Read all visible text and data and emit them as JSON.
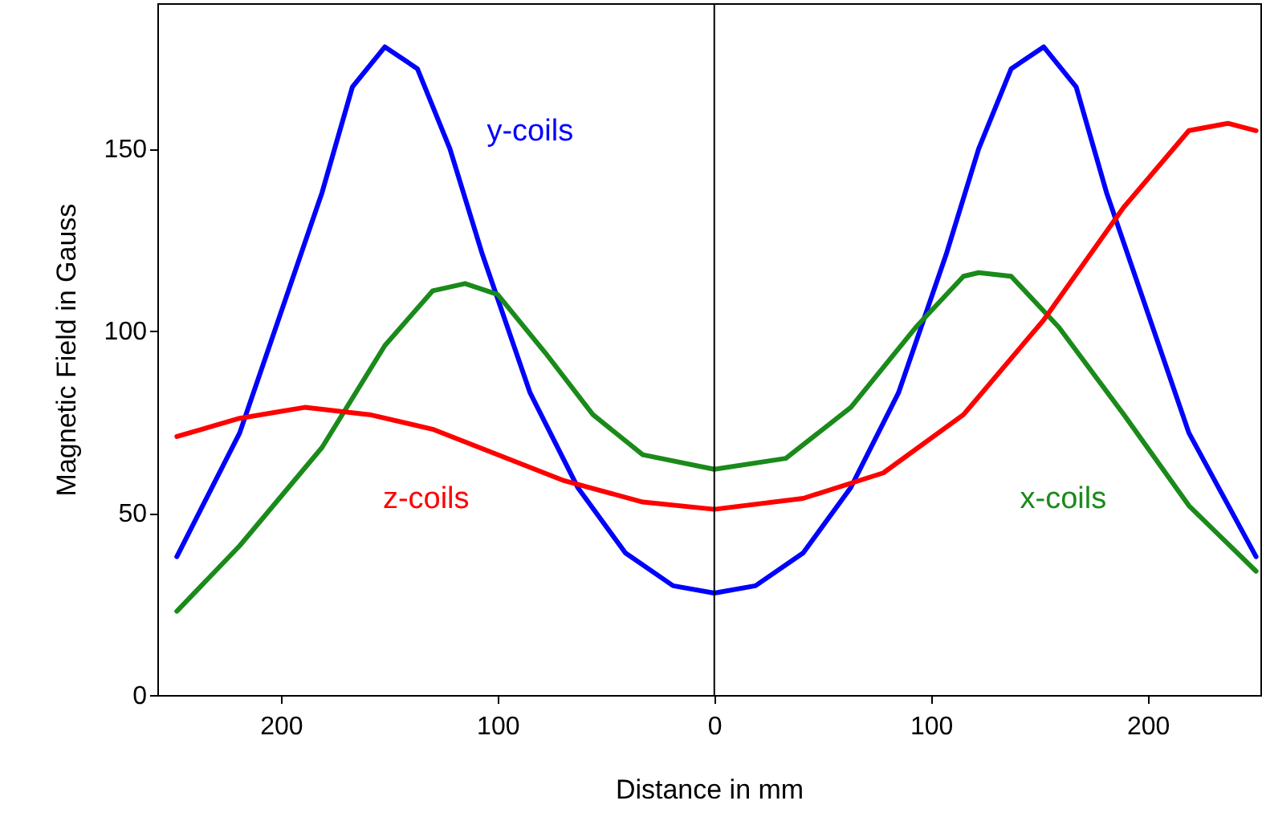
{
  "chart_data": {
    "type": "line",
    "xlabel": "Distance in mm",
    "ylabel": "Magnetic Field in Gauss",
    "xlim": [
      -257,
      252
    ],
    "ylim": [
      0,
      190
    ],
    "xticks": [
      {
        "value": -200,
        "label": "200"
      },
      {
        "value": -100,
        "label": "100"
      },
      0,
      100,
      200
    ],
    "yticks": [
      0,
      50,
      100,
      150
    ],
    "grid": false,
    "legend": false,
    "line_style": "solid",
    "marker": "none",
    "ref_lines": [
      {
        "axis": "x",
        "value": 0,
        "color": "#000000"
      }
    ],
    "series": [
      {
        "name": "y-coils",
        "color": "#0000ff",
        "x": [
          -248,
          -219,
          -181,
          -167,
          -152,
          -137,
          -122,
          -107,
          -85,
          -63,
          -41,
          -19,
          0,
          19,
          41,
          63,
          85,
          107,
          122,
          137,
          152,
          167,
          181,
          219,
          250
        ],
        "values": [
          38,
          72,
          138,
          167,
          178,
          172,
          150,
          121,
          83,
          57,
          39,
          30,
          28,
          30,
          39,
          57,
          83,
          121,
          150,
          172,
          178,
          167,
          138,
          72,
          38
        ]
      },
      {
        "name": "x-coils",
        "color": "#1a8a1a",
        "x": [
          -248,
          -219,
          -181,
          -152,
          -130,
          -115,
          -100,
          -78,
          -56,
          -33,
          0,
          33,
          63,
          93,
          115,
          122,
          137,
          159,
          189,
          219,
          250
        ],
        "values": [
          23,
          41,
          68,
          96,
          111,
          113,
          110,
          94,
          77,
          66,
          62,
          65,
          79,
          101,
          115,
          116,
          115,
          101,
          77,
          52,
          34
        ]
      },
      {
        "name": "z-coils",
        "color": "#ff0000",
        "x": [
          -248,
          -219,
          -189,
          -159,
          -130,
          -100,
          -70,
          -33,
          0,
          41,
          78,
          115,
          152,
          189,
          219,
          237,
          250
        ],
        "values": [
          71,
          76,
          79,
          77,
          73,
          66,
          59,
          53,
          51,
          54,
          61,
          77,
          103,
          134,
          155,
          157,
          155
        ]
      }
    ]
  }
}
